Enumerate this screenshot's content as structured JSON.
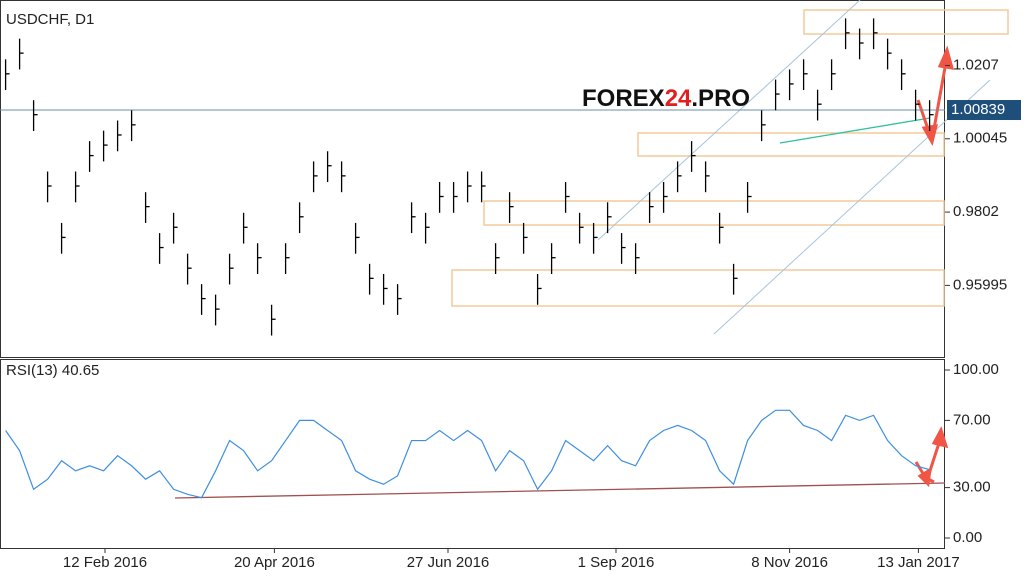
{
  "chart_data": [
    {
      "type": "ohlc",
      "title": "USDCHF, D1",
      "watermark": {
        "left": "FOREX",
        "mid": "24",
        "right": ".PRO"
      },
      "color": "#000000",
      "high": [
        1.0224,
        1.0281,
        1.0111,
        0.9914,
        0.9772,
        0.9914,
        0.9998,
        1.0027,
        1.0055,
        1.0083,
        0.9857,
        0.9744,
        0.98,
        0.9687,
        0.9603,
        0.9574,
        0.9687,
        0.98,
        0.9716,
        0.9546,
        0.9716,
        0.9829,
        0.9942,
        0.997,
        0.9942,
        0.9772,
        0.9659,
        0.9631,
        0.9603,
        0.9829,
        0.98,
        0.9885,
        0.9885,
        0.9914,
        0.9914,
        0.9716,
        0.9857,
        0.9772,
        0.9631,
        0.9716,
        0.9885,
        0.98,
        0.9772,
        0.9829,
        0.9744,
        0.9716,
        0.9857,
        0.9885,
        0.9942,
        0.9998,
        0.9942,
        0.98,
        0.9659,
        0.9885,
        1.0083,
        1.0168,
        1.0196,
        1.0224,
        1.014,
        1.0224,
        1.0337,
        1.0309,
        1.0337,
        1.0281,
        1.0224,
        1.014,
        1.0111
      ],
      "low": [
        1.0139,
        1.0196,
        1.0026,
        0.9829,
        0.9687,
        0.9829,
        0.9913,
        0.9942,
        0.997,
        0.9998,
        0.9772,
        0.9659,
        0.9715,
        0.9602,
        0.9518,
        0.9489,
        0.9602,
        0.9715,
        0.9631,
        0.9461,
        0.9631,
        0.9744,
        0.9857,
        0.9885,
        0.9857,
        0.9687,
        0.9574,
        0.9546,
        0.9518,
        0.9744,
        0.9715,
        0.98,
        0.98,
        0.9829,
        0.9829,
        0.9631,
        0.9772,
        0.9687,
        0.9546,
        0.9631,
        0.98,
        0.9715,
        0.9687,
        0.9744,
        0.9659,
        0.9631,
        0.9772,
        0.98,
        0.9857,
        0.9913,
        0.9857,
        0.9715,
        0.9574,
        0.98,
        0.9998,
        1.0083,
        1.0111,
        1.0139,
        1.0055,
        1.0139,
        1.0252,
        1.0224,
        1.0252,
        1.0196,
        1.0139,
        1.0055,
        1.0026
      ],
      "close": [
        1.0184,
        1.0241,
        1.0071,
        0.9874,
        0.9732,
        0.9874,
        0.9958,
        0.9987,
        1.0015,
        1.0043,
        0.9817,
        0.9704,
        0.976,
        0.9647,
        0.9563,
        0.9534,
        0.9647,
        0.976,
        0.9676,
        0.9506,
        0.9676,
        0.9789,
        0.9902,
        0.993,
        0.9902,
        0.9732,
        0.9619,
        0.9591,
        0.9563,
        0.9789,
        0.976,
        0.9845,
        0.9845,
        0.9874,
        0.9874,
        0.9676,
        0.9817,
        0.9732,
        0.9591,
        0.9676,
        0.9845,
        0.976,
        0.9732,
        0.9789,
        0.9704,
        0.9676,
        0.9817,
        0.9845,
        0.9902,
        0.9958,
        0.9902,
        0.976,
        0.9619,
        0.9845,
        1.0043,
        1.0128,
        1.0156,
        1.0184,
        1.01,
        1.0184,
        1.0297,
        1.0269,
        1.0297,
        1.0241,
        1.0184,
        1.01,
        1.0071
      ],
      "current_price": 1.00839,
      "xlim": [
        -0.4,
        67.1
      ],
      "ylim": [
        0.94017,
        1.03878
      ],
      "yticks": [
        0.95995,
        0.9802,
        1.00045,
        1.0207
      ],
      "xticks": [
        {
          "value": 7.1,
          "label": "12 Feb 2016"
        },
        {
          "value": 19.2,
          "label": "20 Apr 2016"
        },
        {
          "value": 31.6,
          "label": "27 Jun 2016"
        },
        {
          "value": 43.6,
          "label": "1 Sep 2016"
        },
        {
          "value": 56.0,
          "label": "8 Nov 2016"
        },
        {
          "value": 65.2,
          "label": "13 Jan 2017"
        }
      ]
    },
    {
      "type": "line",
      "title": "RSI(13) 40.65",
      "color": "#3d8fe0",
      "values": [
        64,
        52,
        29,
        35,
        46,
        40,
        43,
        40,
        49,
        43,
        35,
        40,
        29,
        26,
        24,
        40,
        58,
        52,
        40,
        46,
        58,
        70,
        70,
        64,
        58,
        40,
        35,
        32,
        37,
        58,
        58,
        64,
        58,
        64,
        58,
        40,
        52,
        46,
        29,
        40,
        58,
        52,
        46,
        55,
        46,
        43,
        58,
        64,
        67,
        64,
        58,
        40,
        32,
        58,
        70,
        76,
        76,
        67,
        64,
        58,
        73,
        70,
        73,
        58,
        49,
        43,
        40.65
      ],
      "xlim": [
        -0.4,
        67.1
      ],
      "ylim": [
        -5.95,
        105.95
      ],
      "yticks": [
        {
          "value": 100,
          "label": "100.00"
        },
        {
          "value": 70,
          "label": "70.00"
        },
        {
          "value": 30,
          "label": "30.00"
        },
        {
          "value": 0,
          "label": "0.00"
        }
      ]
    }
  ]
}
